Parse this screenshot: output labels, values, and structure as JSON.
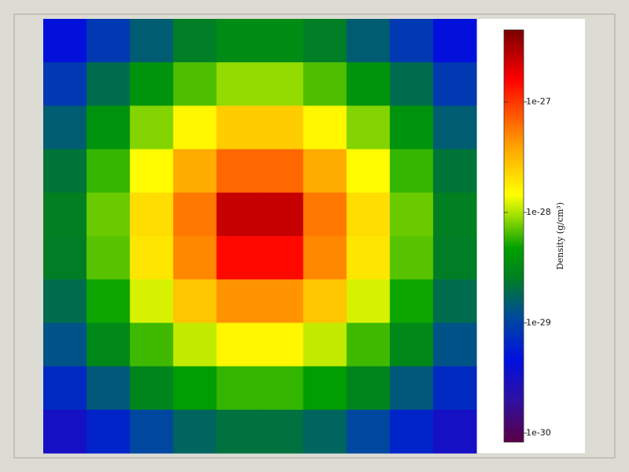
{
  "chart_data": {
    "type": "heatmap",
    "colorbar_label": "Density  (g/cm³)",
    "zlim": [
      8.3e-31,
      4.5e-27
    ],
    "zscale": "log",
    "zticks": [
      1e-27,
      1e-28,
      1e-29,
      1e-30
    ],
    "colormap": [
      [
        0,
        "#5a0045"
      ],
      [
        0.1,
        "#3010a0"
      ],
      [
        0.2,
        "#0010e0"
      ],
      [
        0.3,
        "#0048a0"
      ],
      [
        0.4,
        "#008020"
      ],
      [
        0.47,
        "#00a000"
      ],
      [
        0.55,
        "#a0e000"
      ],
      [
        0.6,
        "#ffff00"
      ],
      [
        0.72,
        "#ffa000"
      ],
      [
        0.88,
        "#ff0000"
      ],
      [
        1,
        "#7a0000"
      ]
    ],
    "z": [
      [
        4.4e-30,
        8.7e-30,
        1.5e-29,
        2.5e-29,
        3.2e-29,
        3.2e-29,
        2.5e-29,
        1.5e-29,
        8.7e-30,
        4.4e-30
      ],
      [
        8.7e-30,
        1.9e-29,
        3.8e-29,
        6.6e-29,
        8.9e-29,
        8.9e-29,
        6.6e-29,
        3.8e-29,
        1.9e-29,
        8.7e-30
      ],
      [
        1.5e-29,
        3.7e-29,
        8.3e-29,
        1.6e-28,
        2.5e-28,
        2.5e-28,
        1.6e-28,
        8.3e-29,
        3.7e-29,
        1.5e-29
      ],
      [
        2.2e-29,
        5.9e-29,
        1.5e-28,
        3.6e-28,
        6.6e-28,
        6.6e-28,
        3.6e-28,
        1.5e-28,
        5.9e-29,
        2.2e-29
      ],
      [
        2.6e-29,
        7.4e-29,
        2.1e-28,
        5.7e-28,
        2.5e-27,
        2.5e-27,
        5.7e-28,
        2.1e-28,
        7.4e-29,
        2.6e-29
      ],
      [
        2.5e-29,
        6.9e-29,
        1.9e-28,
        5e-28,
        1.5e-27,
        1.5e-27,
        5e-28,
        1.9e-28,
        6.9e-29,
        2.5e-29
      ],
      [
        1.9e-29,
        5e-29,
        1.2e-28,
        2.7e-28,
        4.5e-28,
        4.5e-28,
        2.7e-28,
        1.2e-28,
        5e-29,
        1.9e-29
      ],
      [
        1.3e-29,
        3e-29,
        6.2e-29,
        1.1e-28,
        1.6e-28,
        1.6e-28,
        1.1e-28,
        6.2e-29,
        3e-29,
        1.3e-29
      ],
      [
        6.9e-30,
        1.4e-29,
        2.8e-29,
        4.5e-29,
        5.9e-29,
        5.9e-29,
        4.5e-29,
        2.8e-29,
        1.4e-29,
        6.9e-30
      ],
      [
        3.2e-30,
        6.2e-30,
        1.1e-29,
        1.7e-29,
        2.1e-29,
        2.1e-29,
        1.7e-29,
        1.1e-29,
        6.2e-30,
        3.2e-30
      ]
    ]
  }
}
